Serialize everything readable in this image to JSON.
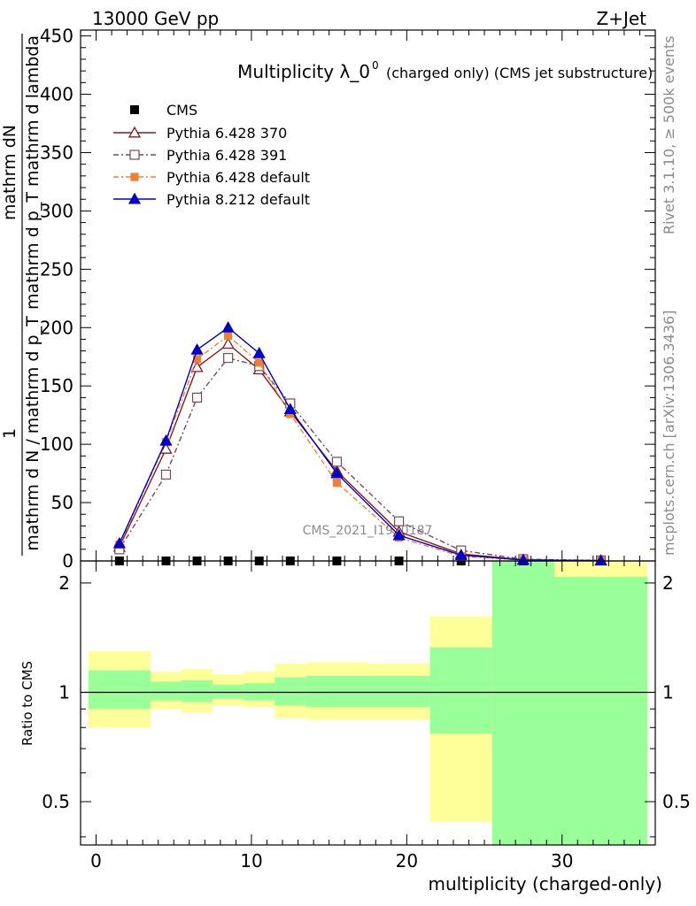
{
  "header": {
    "left": "13000 GeV pp",
    "right": "Z+Jet"
  },
  "side_texts": {
    "rivet": "Rivet 3.1.10, ≥ 500k events",
    "mcplots": "mcplots.cern.ch [arXiv:1306.3436]"
  },
  "watermark": "CMS_2021_I1920187",
  "chart_data": [
    {
      "type": "line",
      "title": "Multiplicity λ_0",
      "title_sup": "0",
      "title_small": "(charged only) (CMS jet substructure)",
      "ylabel_numerator": "mathrm dN",
      "ylabel_denominator": "mathrm d p_T mathrm d lambda",
      "ylabel_prefix_num": "1",
      "ylabel_prefix_den": "mathrm d N / mathrm d p_T",
      "ylim": [
        0,
        455
      ],
      "yticks": [
        0,
        50,
        100,
        150,
        200,
        250,
        300,
        350,
        400,
        450
      ],
      "xlim": [
        -1,
        36
      ],
      "x": [
        1.5,
        4.5,
        6.5,
        8.5,
        10.5,
        12.5,
        15.5,
        19.5,
        23.5,
        27.5,
        32.5
      ],
      "cms": [
        0,
        0,
        0,
        0,
        0,
        0,
        0,
        0,
        0,
        0,
        0
      ],
      "series": [
        {
          "name": "Pythia 6.428 370",
          "color": "#8b1a1a",
          "dash": "",
          "marker": "triangle-open",
          "values": [
            12,
            96,
            166,
            186,
            164,
            128,
            77,
            25,
            6,
            1,
            0.3
          ]
        },
        {
          "name": "Pythia 6.428 391",
          "color": "#7a4a55",
          "dash": "6,3,2,3",
          "marker": "square-open",
          "values": [
            10,
            74,
            140,
            174,
            167,
            135,
            85,
            34,
            9,
            1.5,
            0.5
          ]
        },
        {
          "name": "Pythia 6.428 default",
          "color": "#f08030",
          "dash": "6,3,2,3",
          "marker": "square-filled",
          "values": [
            14,
            102,
            173,
            193,
            170,
            126,
            67,
            20,
            4,
            0.7,
            0.2
          ]
        },
        {
          "name": "Pythia 8.212 default",
          "color": "#0000cc",
          "dash": "",
          "marker": "triangle-filled",
          "values": [
            15,
            103,
            181,
            200,
            178,
            130,
            75,
            22,
            5,
            0.8,
            0.2
          ]
        }
      ],
      "legend_data_label": "CMS",
      "legend_position": "top-left"
    },
    {
      "type": "area",
      "ylabel": "Ratio to CMS",
      "xlabel": "multiplicity (charged-only)",
      "ylim": [
        0.38,
        2.3
      ],
      "yticks": [
        0.5,
        1,
        2
      ],
      "yscale": "log",
      "xticks": [
        0,
        10,
        20,
        30
      ],
      "bins": [
        {
          "lo": -0.5,
          "hi": 3.5,
          "green": [
            0.9,
            1.15
          ],
          "yellow": [
            0.8,
            1.3
          ]
        },
        {
          "lo": 3.5,
          "hi": 5.5,
          "green": [
            0.95,
            1.07
          ],
          "yellow": [
            0.9,
            1.14
          ]
        },
        {
          "lo": 5.5,
          "hi": 7.5,
          "green": [
            0.94,
            1.08
          ],
          "yellow": [
            0.88,
            1.16
          ]
        },
        {
          "lo": 7.5,
          "hi": 9.5,
          "green": [
            0.96,
            1.05
          ],
          "yellow": [
            0.92,
            1.12
          ]
        },
        {
          "lo": 9.5,
          "hi": 11.5,
          "green": [
            0.95,
            1.06
          ],
          "yellow": [
            0.91,
            1.14
          ]
        },
        {
          "lo": 11.5,
          "hi": 13.5,
          "green": [
            0.92,
            1.1
          ],
          "yellow": [
            0.85,
            1.2
          ]
        },
        {
          "lo": 13.5,
          "hi": 17.5,
          "green": [
            0.91,
            1.11
          ],
          "yellow": [
            0.84,
            1.21
          ]
        },
        {
          "lo": 17.5,
          "hi": 21.5,
          "green": [
            0.91,
            1.11
          ],
          "yellow": [
            0.84,
            1.2
          ]
        },
        {
          "lo": 21.5,
          "hi": 25.5,
          "green": [
            0.77,
            1.33
          ],
          "yellow": [
            0.44,
            1.62
          ]
        },
        {
          "lo": 25.5,
          "hi": 29.5,
          "green": [
            0.38,
            2.3
          ],
          "yellow": [
            0.38,
            2.3
          ]
        },
        {
          "lo": 29.5,
          "hi": 35.5,
          "green": [
            0.38,
            2.08
          ],
          "yellow": [
            0.38,
            2.3
          ]
        }
      ],
      "green_color": "#99ff99",
      "yellow_color": "#ffff99"
    }
  ]
}
